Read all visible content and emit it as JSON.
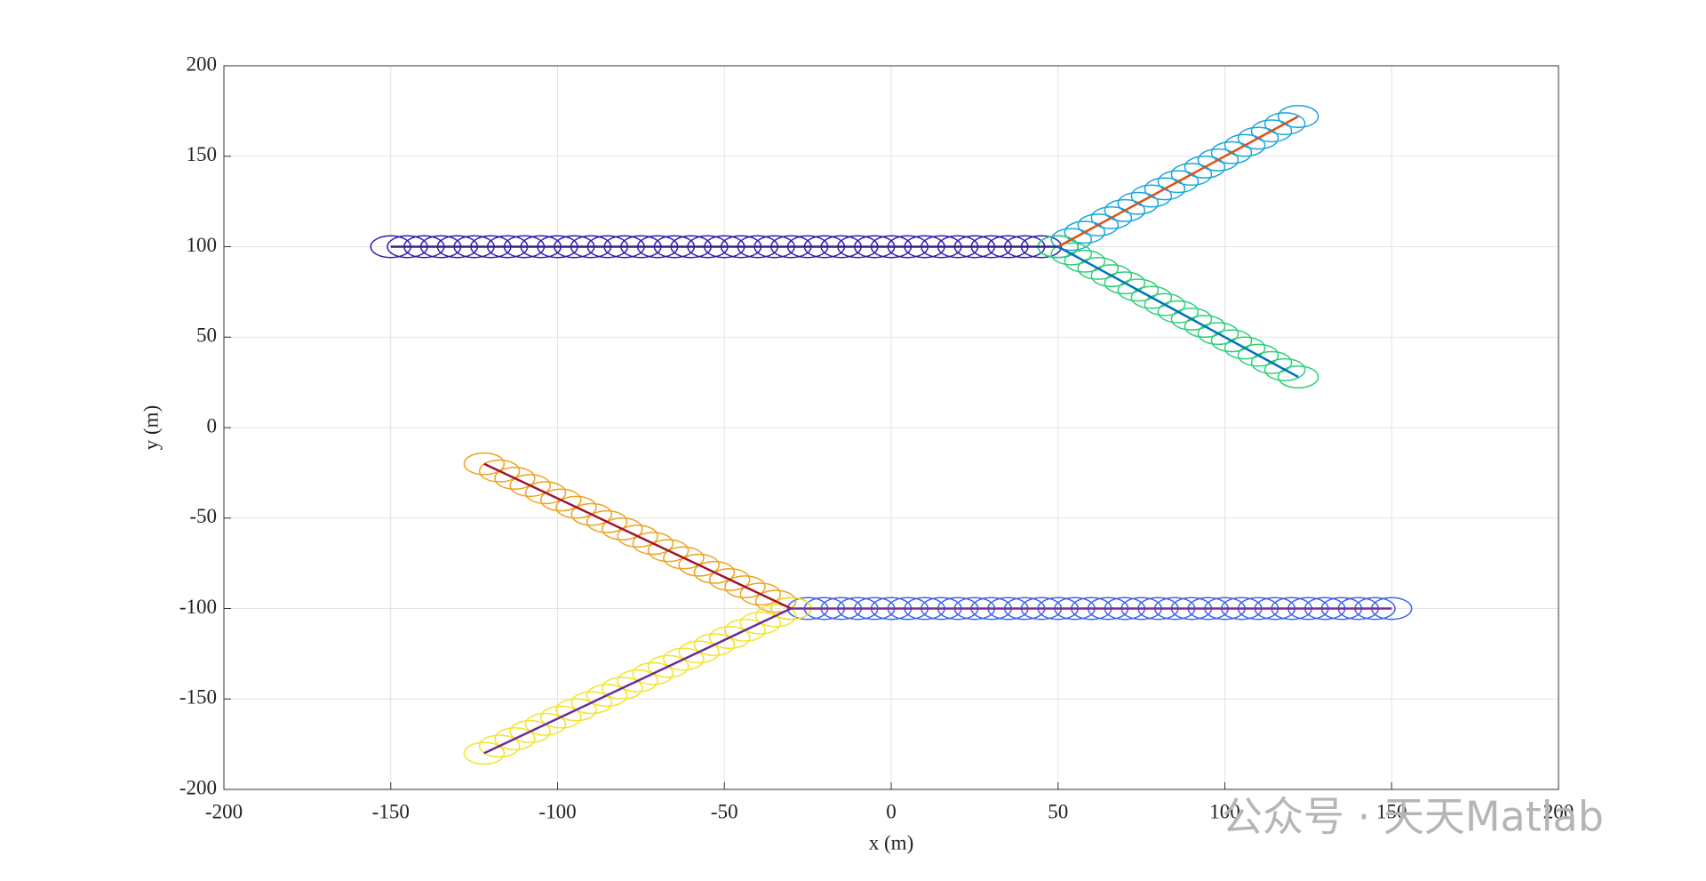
{
  "chart_data": {
    "type": "trajectory",
    "xlabel": "x (m)",
    "ylabel": "y (m)",
    "xlim": [
      -200,
      200
    ],
    "ylim": [
      -200,
      200
    ],
    "xticks": [
      -200,
      -150,
      -100,
      -50,
      0,
      50,
      100,
      150,
      200
    ],
    "yticks": [
      -200,
      -150,
      -100,
      -50,
      0,
      50,
      100,
      150,
      200
    ],
    "grid": true,
    "circle_radius": 6,
    "watermark": "公众号 · 天天Matlab",
    "series": [
      {
        "color": "#3b1f8c",
        "circle_color": "#2a1fb0",
        "x": [
          -150,
          -145,
          -140,
          -135,
          -130,
          -125,
          -120,
          -115,
          -110,
          -105,
          -100,
          -95,
          -90,
          -85,
          -80,
          -75,
          -70,
          -65,
          -60,
          -55,
          -50,
          -45,
          -40,
          -35,
          -30,
          -25,
          -20,
          -15,
          -10,
          -5,
          0,
          5,
          10,
          15,
          20,
          25,
          30,
          35,
          40,
          45,
          50
        ],
        "y": [
          100,
          100,
          100,
          100,
          100,
          100,
          100,
          100,
          100,
          100,
          100,
          100,
          100,
          100,
          100,
          100,
          100,
          100,
          100,
          100,
          100,
          100,
          100,
          100,
          100,
          100,
          100,
          100,
          100,
          100,
          100,
          100,
          100,
          100,
          100,
          100,
          100,
          100,
          100,
          100,
          100
        ]
      },
      {
        "color": "#d95319",
        "circle_color": "#1ba6dc",
        "x": [
          50,
          54,
          58,
          62,
          66,
          70,
          74,
          78,
          82,
          86,
          90,
          94,
          98,
          102,
          106,
          110,
          114,
          118,
          122
        ],
        "y": [
          100,
          104,
          108,
          112,
          116,
          120,
          124,
          128,
          132,
          136,
          140,
          144,
          148,
          152,
          156,
          160,
          164,
          168,
          172
        ]
      },
      {
        "color": "#0072bd",
        "circle_color": "#2fcf7a",
        "x": [
          50,
          54,
          58,
          62,
          66,
          70,
          74,
          78,
          82,
          86,
          90,
          94,
          98,
          102,
          106,
          110,
          114,
          118,
          122
        ],
        "y": [
          100,
          96,
          92,
          88,
          84,
          80,
          76,
          72,
          68,
          64,
          60,
          56,
          52,
          48,
          44,
          40,
          36,
          32,
          28
        ]
      },
      {
        "color": "#7e2f8e",
        "circle_color": "#3d62f0",
        "x": [
          -30,
          -25,
          -20,
          -15,
          -10,
          -5,
          0,
          5,
          10,
          15,
          20,
          25,
          30,
          35,
          40,
          45,
          50,
          55,
          60,
          65,
          70,
          75,
          80,
          85,
          90,
          95,
          100,
          105,
          110,
          115,
          120,
          125,
          130,
          135,
          140,
          145,
          150
        ],
        "y": [
          -100,
          -100,
          -100,
          -100,
          -100,
          -100,
          -100,
          -100,
          -100,
          -100,
          -100,
          -100,
          -100,
          -100,
          -100,
          -100,
          -100,
          -100,
          -100,
          -100,
          -100,
          -100,
          -100,
          -100,
          -100,
          -100,
          -100,
          -100,
          -100,
          -100,
          -100,
          -100,
          -100,
          -100,
          -100,
          -100,
          -100
        ]
      },
      {
        "color": "#a2142f",
        "circle_color": "#eea321",
        "x": [
          -30,
          -34.6,
          -39.2,
          -43.8,
          -48.4,
          -53,
          -57.6,
          -62.2,
          -66.8,
          -71.4,
          -76,
          -80.6,
          -85.2,
          -89.8,
          -94.4,
          -99,
          -103.6,
          -108.2,
          -112.8,
          -117.4,
          -122
        ],
        "y": [
          -100,
          -96,
          -92,
          -88,
          -84,
          -80,
          -76,
          -72,
          -68,
          -64,
          -60,
          -56,
          -52,
          -48,
          -44,
          -40,
          -36,
          -32,
          -28,
          -24,
          -20
        ]
      },
      {
        "color": "#6a2c91",
        "circle_color": "#f2e52a",
        "x": [
          -30,
          -34.6,
          -39.2,
          -43.8,
          -48.4,
          -53,
          -57.6,
          -62.2,
          -66.8,
          -71.4,
          -76,
          -80.6,
          -85.2,
          -89.8,
          -94.4,
          -99,
          -103.6,
          -108.2,
          -112.8,
          -117.4,
          -122
        ],
        "y": [
          -100,
          -104,
          -108,
          -112,
          -116,
          -120,
          -124,
          -128,
          -132,
          -136,
          -140,
          -144,
          -148,
          -152,
          -156,
          -160,
          -164,
          -168,
          -172,
          -176,
          -180
        ]
      }
    ]
  }
}
